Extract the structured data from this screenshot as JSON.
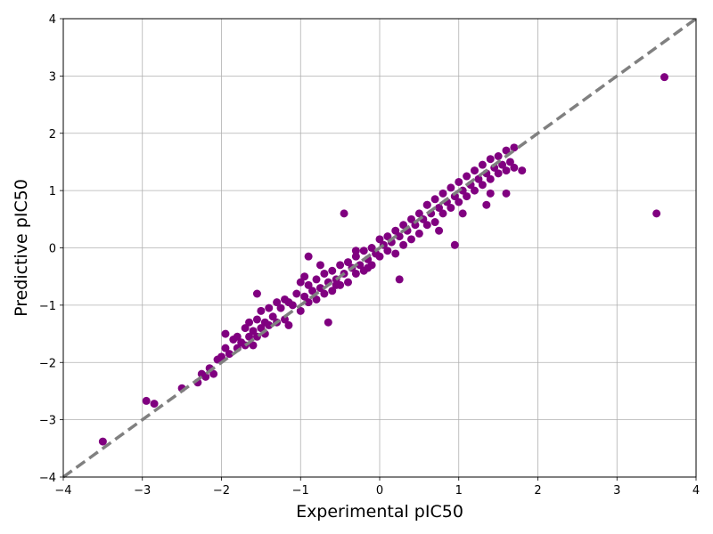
{
  "chart_data": {
    "type": "scatter",
    "title": "",
    "xlabel": "Experimental pIC50",
    "ylabel": "Predictive pIC50",
    "xlim": [
      -4,
      4
    ],
    "ylim": [
      -4,
      4
    ],
    "xticks": [
      -4,
      -3,
      -2,
      -1,
      0,
      1,
      2,
      3,
      4
    ],
    "yticks": [
      -4,
      -3,
      -2,
      -1,
      0,
      1,
      2,
      3,
      4
    ],
    "tick_labels_x": [
      "−4",
      "−3",
      "−2",
      "−1",
      "0",
      "1",
      "2",
      "3",
      "4"
    ],
    "tick_labels_y": [
      "−4",
      "−3",
      "−2",
      "−1",
      "0",
      "1",
      "2",
      "3",
      "4"
    ],
    "grid": true,
    "reference_line": {
      "x": [
        -4,
        4
      ],
      "y": [
        -4,
        4
      ],
      "style": "dashed",
      "color": "#808080"
    },
    "point_color": "#800080",
    "series": [
      {
        "x": [
          -3.5,
          -2.95,
          -2.85,
          -2.5,
          -2.3,
          -2.25,
          -2.2,
          -2.15,
          -2.1,
          -2.05,
          -2.0,
          -1.95,
          -1.9,
          -1.85,
          -1.8,
          -1.8,
          -1.75,
          -1.7,
          -1.7,
          -1.65,
          -1.65,
          -1.6,
          -1.6,
          -1.55,
          -1.55,
          -1.5,
          -1.5,
          -1.45,
          -1.45,
          -1.4,
          -1.4,
          -1.35,
          -1.3,
          -1.3,
          -1.25,
          -1.2,
          -1.2,
          -1.15,
          -1.1,
          -1.05,
          -1.0,
          -1.0,
          -0.95,
          -0.9,
          -0.9,
          -0.85,
          -0.8,
          -0.8,
          -0.75,
          -0.7,
          -0.7,
          -0.65,
          -0.6,
          -0.6,
          -0.55,
          -0.5,
          -0.5,
          -0.45,
          -0.4,
          -0.4,
          -0.35,
          -0.3,
          -0.3,
          -0.25,
          -0.2,
          -0.2,
          -0.15,
          -0.1,
          -0.1,
          -0.05,
          0.0,
          0.0,
          0.05,
          0.1,
          0.1,
          0.15,
          0.2,
          0.2,
          0.25,
          0.3,
          0.3,
          0.35,
          0.4,
          0.4,
          0.45,
          0.5,
          0.5,
          0.55,
          0.6,
          0.6,
          0.65,
          0.7,
          0.7,
          0.75,
          0.8,
          0.8,
          0.85,
          0.9,
          0.9,
          0.95,
          1.0,
          1.0,
          1.05,
          1.1,
          1.1,
          1.15,
          1.2,
          1.2,
          1.25,
          1.3,
          1.3,
          1.35,
          1.4,
          1.4,
          1.45,
          1.5,
          1.5,
          1.55,
          1.6,
          1.6,
          1.65,
          1.7,
          1.7,
          1.8,
          -0.9,
          -0.75,
          -0.55,
          -0.15,
          0.25,
          0.95,
          1.05,
          1.4,
          3.5,
          3.6,
          -1.95,
          -1.55,
          -0.95,
          -0.45,
          -0.65,
          0.6,
          1.35,
          1.6,
          -1.15,
          0.75,
          -0.3
        ],
        "y": [
          -3.38,
          -2.67,
          -2.72,
          -2.45,
          -2.35,
          -2.2,
          -2.25,
          -2.1,
          -2.2,
          -1.95,
          -1.9,
          -1.75,
          -1.85,
          -1.6,
          -1.75,
          -1.55,
          -1.65,
          -1.4,
          -1.7,
          -1.55,
          -1.3,
          -1.45,
          -1.7,
          -1.25,
          -1.55,
          -1.1,
          -1.4,
          -1.3,
          -1.5,
          -1.05,
          -1.35,
          -1.2,
          -0.95,
          -1.3,
          -1.05,
          -0.9,
          -1.25,
          -0.95,
          -1.0,
          -0.8,
          -0.6,
          -1.1,
          -0.85,
          -0.65,
          -0.95,
          -0.75,
          -0.55,
          -0.9,
          -0.7,
          -0.45,
          -0.8,
          -0.6,
          -0.4,
          -0.75,
          -0.55,
          -0.3,
          -0.65,
          -0.45,
          -0.25,
          -0.6,
          -0.35,
          -0.15,
          -0.45,
          -0.3,
          -0.05,
          -0.4,
          -0.2,
          0.0,
          -0.3,
          -0.1,
          0.15,
          -0.15,
          0.05,
          0.2,
          -0.05,
          0.1,
          0.3,
          -0.1,
          0.2,
          0.4,
          0.05,
          0.3,
          0.5,
          0.15,
          0.4,
          0.6,
          0.25,
          0.5,
          0.75,
          0.4,
          0.6,
          0.85,
          0.45,
          0.7,
          0.95,
          0.6,
          0.8,
          1.05,
          0.7,
          0.9,
          1.15,
          0.8,
          1.0,
          1.25,
          0.9,
          1.1,
          1.35,
          1.0,
          1.2,
          1.45,
          1.1,
          1.3,
          1.55,
          1.2,
          1.4,
          1.6,
          1.3,
          1.45,
          1.7,
          1.35,
          1.5,
          1.75,
          1.4,
          1.35,
          -0.15,
          -0.3,
          -0.65,
          -0.35,
          -0.55,
          0.05,
          0.6,
          0.95,
          0.6,
          2.98,
          -1.5,
          -0.8,
          -0.5,
          0.6,
          -1.3,
          0.75,
          0.75,
          0.95,
          -1.35,
          0.3,
          -0.05
        ]
      }
    ]
  }
}
